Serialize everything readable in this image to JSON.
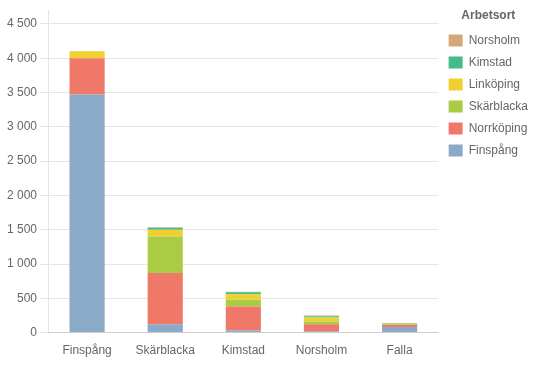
{
  "chart_data": {
    "type": "bar",
    "stacked": true,
    "categories": [
      "Finspång",
      "Skärblacka",
      "Kimstad",
      "Norsholm",
      "Falla"
    ],
    "series": [
      {
        "name": "Finspång",
        "color": "#8BAAC8",
        "values": [
          3470,
          120,
          30,
          20,
          80
        ]
      },
      {
        "name": "Norrköping",
        "color": "#F07868",
        "values": [
          530,
          750,
          350,
          100,
          30
        ]
      },
      {
        "name": "Skärblacka",
        "color": "#AACC44",
        "values": [
          0,
          530,
          100,
          40,
          10
        ]
      },
      {
        "name": "Linköping",
        "color": "#F0D030",
        "values": [
          100,
          100,
          80,
          60,
          10
        ]
      },
      {
        "name": "Kimstad",
        "color": "#44BB88",
        "values": [
          0,
          30,
          30,
          20,
          5
        ]
      },
      {
        "name": "Norsholm",
        "color": "#D4A878",
        "values": [
          0,
          5,
          5,
          10,
          5
        ]
      }
    ],
    "legend_title": "Arbetsort",
    "legend": "right",
    "ylim": [
      0,
      4700
    ],
    "yticks": [
      0,
      500,
      {
        "value": 1000,
        "label": "1 000"
      },
      {
        "value": 1500,
        "label": "1 500"
      },
      {
        "value": 2000,
        "label": "2 000"
      },
      {
        "value": 2500,
        "label": "2 500"
      },
      {
        "value": 3000,
        "label": "3 000"
      },
      {
        "value": 3500,
        "label": "3 500"
      },
      {
        "value": 4000,
        "label": "4 000"
      },
      {
        "value": 4500,
        "label": "4 500"
      }
    ],
    "grid": true
  }
}
